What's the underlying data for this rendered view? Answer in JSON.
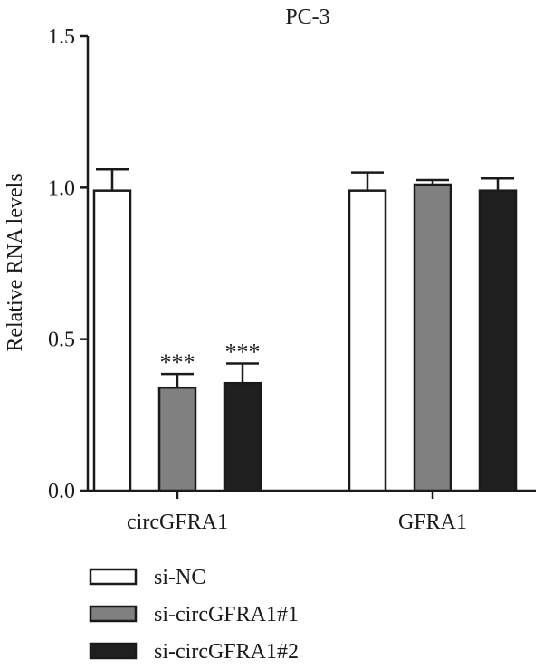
{
  "chart_data": {
    "type": "bar",
    "title": "PC-3",
    "ylabel": "Relative RNA levels",
    "xlabel": "",
    "ylim": [
      0,
      1.5
    ],
    "yticks": [
      "0.0",
      "0.5",
      "1.0",
      "1.5"
    ],
    "categories": [
      "circGFRA1",
      "GFRA1"
    ],
    "series": [
      {
        "name": "si-NC",
        "values": [
          0.99,
          0.99
        ],
        "errors": [
          0.07,
          0.06
        ],
        "annotations": [
          "",
          ""
        ]
      },
      {
        "name": "si-circGFRA1#1",
        "values": [
          0.34,
          1.01
        ],
        "errors": [
          0.045,
          0.015
        ],
        "annotations": [
          "***",
          ""
        ]
      },
      {
        "name": "si-circGFRA1#2",
        "values": [
          0.355,
          0.99
        ],
        "errors": [
          0.065,
          0.04
        ],
        "annotations": [
          "***",
          ""
        ]
      }
    ],
    "colors": [
      "#ffffff",
      "#808080",
      "#1f1f1f"
    ],
    "grid": false,
    "legend_position": "bottom-left"
  }
}
